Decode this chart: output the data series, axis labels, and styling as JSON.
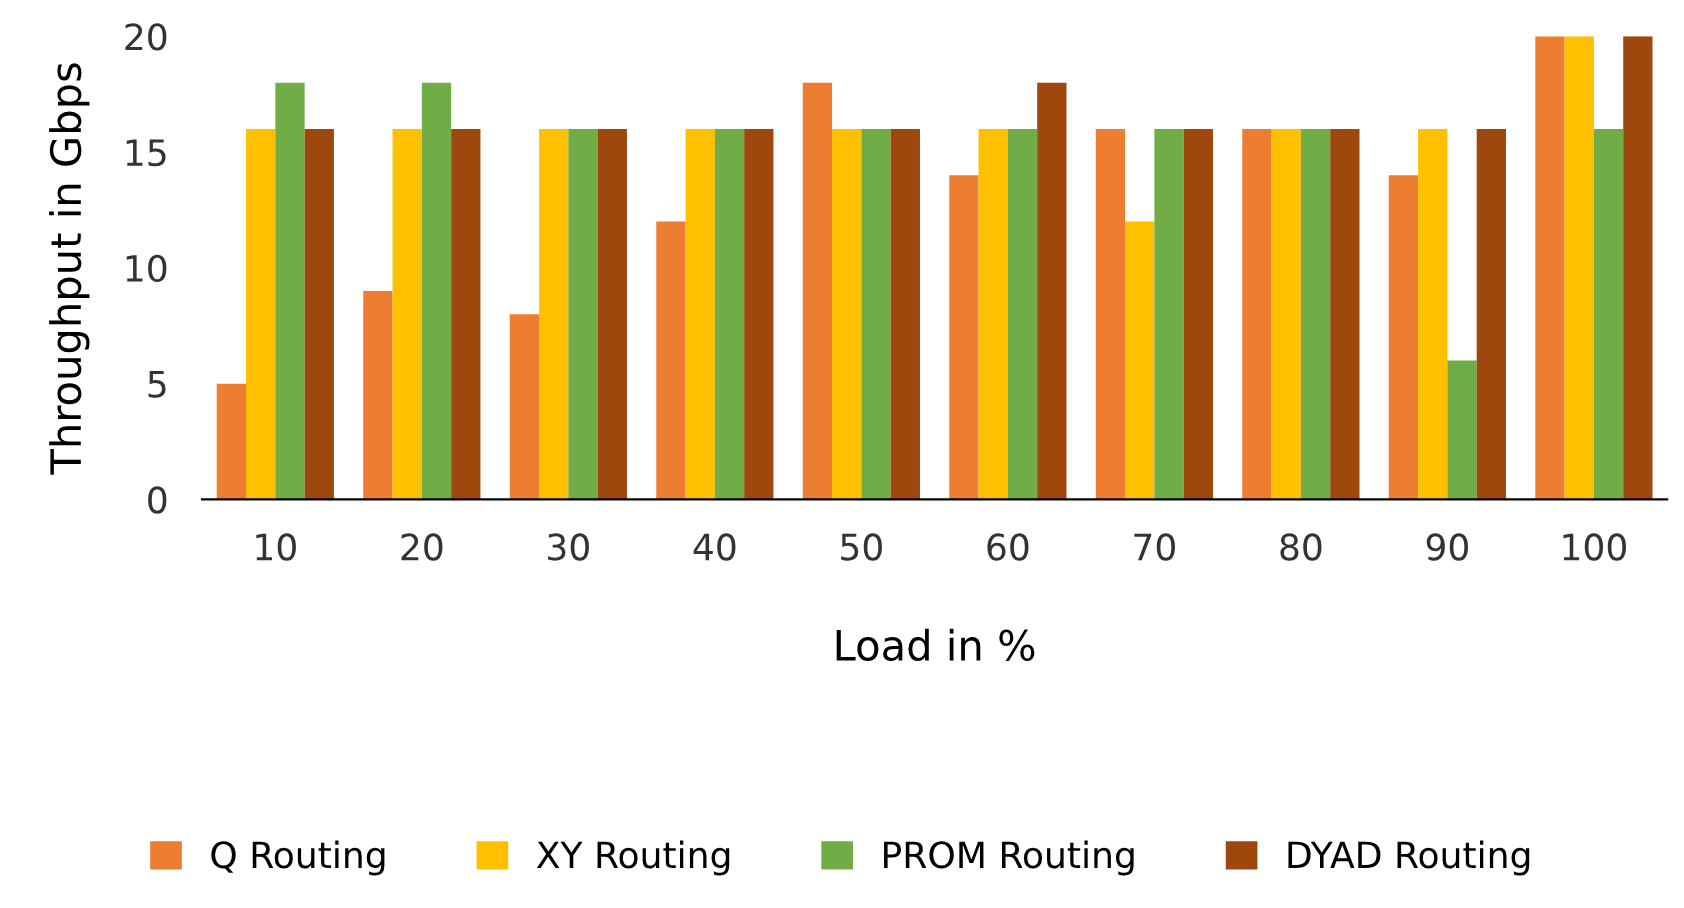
{
  "chart_data": {
    "type": "bar",
    "xlabel": "Load in %",
    "ylabel": "Throughput in Gbps",
    "categories": [
      "10",
      "20",
      "30",
      "40",
      "50",
      "60",
      "70",
      "80",
      "90",
      "100"
    ],
    "series": [
      {
        "name": "Q Routing",
        "color": "#ed7d31",
        "values": [
          5,
          9,
          8,
          12,
          18,
          14,
          16,
          16,
          14,
          20
        ]
      },
      {
        "name": "XY Routing",
        "color": "#ffc000",
        "values": [
          16,
          16,
          16,
          16,
          16,
          16,
          12,
          16,
          16,
          20
        ]
      },
      {
        "name": "PROM Routing",
        "color": "#70ad47",
        "values": [
          18,
          18,
          16,
          16,
          16,
          16,
          16,
          16,
          6,
          16
        ]
      },
      {
        "name": "DYAD Routing",
        "color": "#9e480e",
        "values": [
          16,
          16,
          16,
          16,
          16,
          18,
          16,
          16,
          16,
          20
        ]
      }
    ],
    "ylim": [
      0,
      20
    ],
    "yticks": [
      0,
      5,
      10,
      15,
      20
    ],
    "grid": false,
    "legend": "bottom"
  }
}
